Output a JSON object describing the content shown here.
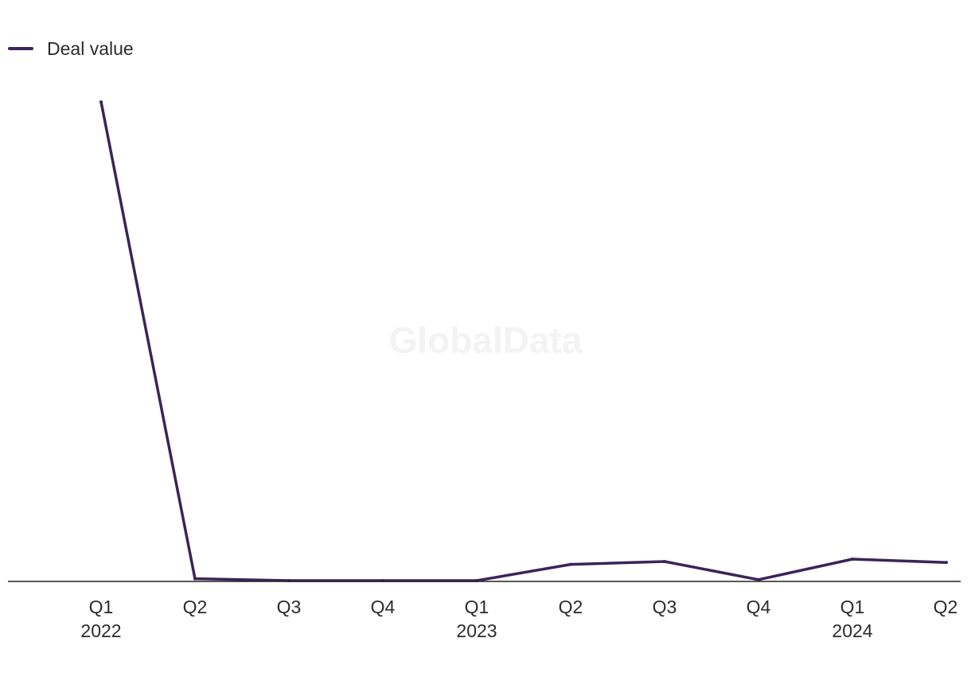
{
  "legend": {
    "label": "Deal value"
  },
  "watermark": "GlobalData",
  "colors": {
    "line": "#3b2458",
    "axis": "#222222",
    "watermark": "#f3f3f3"
  },
  "chart_data": {
    "type": "line",
    "categories": [
      "Q1 2022",
      "Q2 2022",
      "Q3 2022",
      "Q4 2022",
      "Q1 2023",
      "Q2 2023",
      "Q3 2023",
      "Q4 2023",
      "Q1 2024",
      "Q2 2024"
    ],
    "tick_labels": [
      {
        "quarter": "Q1",
        "year": "2022"
      },
      {
        "quarter": "Q2",
        "year": ""
      },
      {
        "quarter": "Q3",
        "year": ""
      },
      {
        "quarter": "Q4",
        "year": ""
      },
      {
        "quarter": "Q1",
        "year": "2023"
      },
      {
        "quarter": "Q2",
        "year": ""
      },
      {
        "quarter": "Q3",
        "year": ""
      },
      {
        "quarter": "Q4",
        "year": ""
      },
      {
        "quarter": "Q1",
        "year": "2024"
      },
      {
        "quarter": "Q2",
        "year": ""
      }
    ],
    "series": [
      {
        "name": "Deal value",
        "values": [
          100,
          0.4,
          0,
          0,
          0,
          3.4,
          4.0,
          0.2,
          4.5,
          3.8
        ]
      }
    ],
    "ylim": [
      0,
      100
    ],
    "grid": false,
    "legend_position": "top-left",
    "xlabel": "",
    "ylabel": ""
  }
}
